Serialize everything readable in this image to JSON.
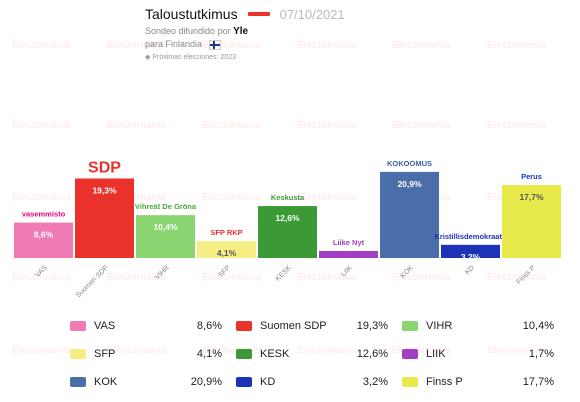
{
  "header": {
    "title": "Taloustutkimus",
    "date": "07/10/2021",
    "subtitle_prefix": "Sondeo difundido por",
    "broadcaster": "Yle",
    "subtitle_suffix": "para Finlandia",
    "next_elections": "Próximas elecciones: 2023"
  },
  "watermark_text": "Electomania",
  "party_logos": {
    "VAS": "vasemmisto",
    "SDP": "SDP",
    "VIHR": "Vihreät De Gröna",
    "SFP": "SFP RKP",
    "KESK": "Keskusta",
    "LIIK": "Liike Nyt",
    "KOK": "KOKOOMUS",
    "KD": "Kristillisdemokraatit",
    "Finss P": "Perus"
  },
  "chart_data": {
    "type": "bar",
    "categories": [
      "VAS",
      "Suomen SDP",
      "VIHR",
      "SFP",
      "KESK",
      "LIIK",
      "KOK",
      "KD",
      "Finss P"
    ],
    "values": [
      8.6,
      19.3,
      10.4,
      4.1,
      12.6,
      1.7,
      20.9,
      3.2,
      17.7
    ],
    "value_labels": [
      "8,6%",
      "19,3%",
      "10,4%",
      "4,1%",
      "12,6%",
      "",
      "20,9%",
      "3,2%",
      "17,7%"
    ],
    "colors": [
      "#f07ab4",
      "#e8322b",
      "#88d571",
      "#f5ee85",
      "#3b9a35",
      "#a23fc4",
      "#4a6fa8",
      "#1c33b8",
      "#e8ea4b"
    ]
  },
  "legend": [
    {
      "name": "VAS",
      "value": "8,6%",
      "color": "#f07ab4",
      "icon": "vas-logo-icon"
    },
    {
      "name": "Suomen SDP",
      "value": "19,3%",
      "color": "#e8322b",
      "icon": "sdp-logo-icon"
    },
    {
      "name": "VIHR",
      "value": "10,4%",
      "color": "#88d571",
      "icon": "vihr-logo-icon"
    },
    {
      "name": "SFP",
      "value": "4,1%",
      "color": "#f5ee85",
      "icon": "sfp-logo-icon"
    },
    {
      "name": "KESK",
      "value": "12,6%",
      "color": "#3b9a35",
      "icon": "kesk-logo-icon"
    },
    {
      "name": "LIIK",
      "value": "1,7%",
      "color": "#a23fc4",
      "icon": "liik-logo-icon"
    },
    {
      "name": "KOK",
      "value": "20,9%",
      "color": "#4a6fa8",
      "icon": "kok-logo-icon"
    },
    {
      "name": "KD",
      "value": "3,2%",
      "color": "#1c33b8",
      "icon": "kd-logo-icon"
    },
    {
      "name": "Finss P",
      "value": "17,7%",
      "color": "#e8ea4b",
      "icon": "finsp-logo-icon"
    }
  ]
}
